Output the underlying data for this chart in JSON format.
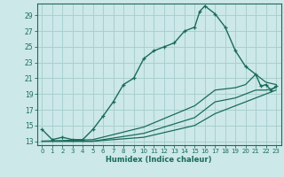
{
  "xlabel": "Humidex (Indice chaleur)",
  "bg_color": "#cce8e8",
  "grid_color": "#aacfcf",
  "line_color": "#1a6b5a",
  "xlim": [
    -0.5,
    23.5
  ],
  "ylim": [
    12.5,
    30.5
  ],
  "xticks": [
    0,
    1,
    2,
    3,
    4,
    5,
    6,
    7,
    8,
    9,
    10,
    11,
    12,
    13,
    14,
    15,
    16,
    17,
    18,
    19,
    20,
    21,
    22,
    23
  ],
  "yticks": [
    13,
    15,
    17,
    19,
    21,
    23,
    25,
    27,
    29
  ],
  "series1_x": [
    0,
    1,
    2,
    3,
    4,
    5,
    6,
    7,
    8,
    9,
    10,
    11,
    12,
    13,
    14,
    15,
    15.5,
    16,
    17,
    18,
    19,
    20,
    21,
    21.5,
    22,
    22.5,
    23
  ],
  "series1_y": [
    14.5,
    13.2,
    13.5,
    13.2,
    13.2,
    14.5,
    16.2,
    18.0,
    20.2,
    21.0,
    23.5,
    24.5,
    25.0,
    25.5,
    27.0,
    27.5,
    29.5,
    30.2,
    29.2,
    27.5,
    24.5,
    22.5,
    21.5,
    20.0,
    20.2,
    19.5,
    20.0
  ],
  "series2_x": [
    0,
    5,
    10,
    15,
    17,
    19,
    20,
    21,
    22,
    23
  ],
  "series2_y": [
    13.0,
    13.2,
    14.8,
    17.5,
    19.5,
    19.8,
    20.2,
    21.5,
    20.5,
    20.2
  ],
  "series3_x": [
    0,
    5,
    10,
    15,
    17,
    19,
    20,
    21,
    22,
    23
  ],
  "series3_y": [
    13.0,
    13.0,
    14.0,
    16.0,
    18.0,
    18.5,
    19.0,
    19.5,
    19.5,
    19.8
  ],
  "series4_x": [
    0,
    5,
    10,
    15,
    17,
    19,
    20,
    21,
    22,
    23
  ],
  "series4_y": [
    13.0,
    13.0,
    13.5,
    15.0,
    16.5,
    17.5,
    18.0,
    18.5,
    19.0,
    19.5
  ]
}
